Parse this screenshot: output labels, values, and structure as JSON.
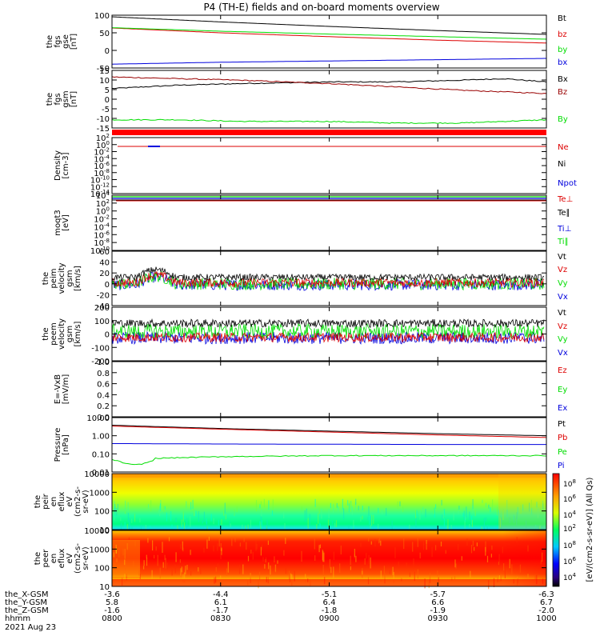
{
  "title": "P4 (TH-E) fields and on-board moments overview",
  "footer": {
    "rows": [
      {
        "label": "the_X-GSM",
        "values": [
          "-3.6",
          "-4.4",
          "-5.1",
          "-5.7",
          "-6.3"
        ]
      },
      {
        "label": "the_Y-GSM",
        "values": [
          "5.8",
          "6.1",
          "6.4",
          "6.6",
          "6.7"
        ]
      },
      {
        "label": "the_Z-GSM",
        "values": [
          "-1.6",
          "-1.7",
          "-1.8",
          "-1.9",
          "-2.0"
        ]
      },
      {
        "label": "hhmm",
        "values": [
          "0800",
          "0830",
          "0900",
          "0930",
          "1000"
        ]
      }
    ],
    "date": "2021 Aug 23"
  },
  "colorbar_label": "[eV/(cm2-s-sr-eV)] (All Qs)",
  "colors": {
    "black": "#000000",
    "red": "#dd0000",
    "green": "#00dd00",
    "blue": "#0000dd",
    "darkred": "#990000"
  },
  "chart_data": [
    {
      "id": "fgs_gse",
      "type": "line",
      "ylabel": [
        "the",
        "fgs",
        "gse",
        "[nT]"
      ],
      "ytick_labels": [
        "100",
        "50",
        "0",
        "-50"
      ],
      "ylim": [
        -60,
        105
      ],
      "legend": [
        {
          "name": "Bt",
          "color": "#000000"
        },
        {
          "name": "bz",
          "color": "#dd0000"
        },
        {
          "name": "by",
          "color": "#00dd00"
        },
        {
          "name": "bx",
          "color": "#0000dd"
        }
      ],
      "x_hours": [
        8.0,
        8.5,
        9.0,
        9.5,
        10.0
      ],
      "series": [
        {
          "name": "Bt",
          "values": [
            100,
            84,
            70,
            57,
            45
          ],
          "color": "#000000"
        },
        {
          "name": "bz",
          "values": [
            65,
            50,
            38,
            27,
            18
          ],
          "color": "#dd0000"
        },
        {
          "name": "by",
          "values": [
            66,
            55,
            46,
            38,
            30
          ],
          "color": "#00dd00"
        },
        {
          "name": "bx",
          "values": [
            -48,
            -42,
            -38,
            -34,
            -30
          ],
          "color": "#0000dd"
        }
      ]
    },
    {
      "id": "fgs_gsm",
      "type": "line",
      "ylabel": [
        "the",
        "fgs",
        "gsm",
        "[nT]"
      ],
      "ytick_labels": [
        "15",
        "10",
        "5",
        "0",
        "-5",
        "-10",
        "-15"
      ],
      "ylim": [
        -18,
        17
      ],
      "legend": [
        {
          "name": "Bx",
          "color": "#000000"
        },
        {
          "name": "Bz",
          "color": "#990000"
        },
        {
          "name": "By",
          "color": "#00dd00"
        }
      ],
      "x_hours": [
        8.0,
        8.3,
        8.6,
        9.0,
        9.3,
        9.6,
        9.8,
        10.0
      ],
      "series": [
        {
          "name": "Bx",
          "values": [
            6,
            8,
            9,
            10,
            10,
            11,
            12,
            10
          ],
          "color": "#000000"
        },
        {
          "name": "Bz",
          "values": [
            13,
            12,
            11,
            9,
            7,
            5,
            4,
            3
          ],
          "color": "#990000"
        },
        {
          "name": "By",
          "values": [
            -13,
            -13,
            -14,
            -14,
            -15,
            -15,
            -14,
            -13
          ],
          "color": "#00dd00"
        }
      ]
    },
    {
      "id": "density",
      "type": "line",
      "ylabel": [
        "Density",
        "[cm-3]"
      ],
      "ytick_labels": [
        "10^2",
        "10^0",
        "10^-2",
        "10^-4",
        "10^-6",
        "10^-8",
        "10^-10",
        "10^-12",
        "10^-14"
      ],
      "log": true,
      "legend": [
        {
          "name": "Ne",
          "color": "#dd0000"
        },
        {
          "name": "Ni",
          "color": "#000000"
        },
        {
          "name": "Npot",
          "color": "#0000dd"
        }
      ],
      "series": [
        {
          "name": "Ne",
          "value": "~1 cm-3",
          "color": "#dd0000"
        }
      ]
    },
    {
      "id": "temperature",
      "type": "line",
      "ylabel": [
        "moqt3",
        "[eV]"
      ],
      "ytick_labels": [
        "10^4",
        "10^2",
        "10^0",
        "10^-2",
        "10^-4",
        "10^-6",
        "10^-8",
        "10^-10"
      ],
      "log": true,
      "legend": [
        {
          "name": "Te⊥",
          "color": "#dd0000"
        },
        {
          "name": "Te∥",
          "color": "#000000"
        },
        {
          "name": "Ti⊥",
          "color": "#0000dd"
        },
        {
          "name": "Ti∥",
          "color": "#00dd00"
        }
      ]
    },
    {
      "id": "peim_velocity",
      "type": "line",
      "ylabel": [
        "the",
        "peim",
        "velocity",
        "gsm",
        "[km/s]"
      ],
      "ytick_labels": [
        "60",
        "40",
        "20",
        "0",
        "-20",
        "-40"
      ],
      "ylim": [
        -40,
        60
      ],
      "legend": [
        {
          "name": "Vt",
          "color": "#000000"
        },
        {
          "name": "Vz",
          "color": "#dd0000"
        },
        {
          "name": "Vy",
          "color": "#00dd00"
        },
        {
          "name": "Vx",
          "color": "#0000dd"
        }
      ]
    },
    {
      "id": "peem_velocity",
      "type": "line",
      "ylabel": [
        "the",
        "peem",
        "velocity",
        "gsm",
        "[km/s]"
      ],
      "ytick_labels": [
        "200",
        "100",
        "0",
        "-100",
        "-200"
      ],
      "ylim": [
        -200,
        200
      ],
      "legend": [
        {
          "name": "Vt",
          "color": "#000000"
        },
        {
          "name": "Vz",
          "color": "#dd0000"
        },
        {
          "name": "Vy",
          "color": "#00dd00"
        },
        {
          "name": "Vx",
          "color": "#0000dd"
        }
      ]
    },
    {
      "id": "efield",
      "type": "line",
      "ylabel": [
        "E=-VxB",
        "[mV/m]"
      ],
      "ytick_labels": [
        "1.0",
        "0.8",
        "0.6",
        "0.4",
        "0.2",
        "0.0"
      ],
      "ylim": [
        0,
        1
      ],
      "legend": [
        {
          "name": "Ez",
          "color": "#dd0000"
        },
        {
          "name": "Ey",
          "color": "#00dd00"
        },
        {
          "name": "Ex",
          "color": "#0000dd"
        }
      ]
    },
    {
      "id": "pressure",
      "type": "line",
      "ylabel": [
        "Pressure",
        "[nPa]"
      ],
      "ytick_labels": [
        "10.00",
        "1.00",
        "0.10",
        "0.01"
      ],
      "log": true,
      "legend": [
        {
          "name": "Pt",
          "color": "#000000"
        },
        {
          "name": "Pb",
          "color": "#dd0000"
        },
        {
          "name": "Pe",
          "color": "#00dd00"
        },
        {
          "name": "Pi",
          "color": "#0000dd"
        }
      ],
      "series": [
        {
          "name": "Pt",
          "values": [
            3.8,
            2.5,
            1.8,
            1.3,
            1.0
          ],
          "color": "#000000"
        },
        {
          "name": "Pb",
          "values": [
            3.4,
            2.3,
            1.6,
            1.1,
            0.8
          ],
          "color": "#dd0000"
        },
        {
          "name": "Pi",
          "values": [
            0.37,
            0.35,
            0.34,
            0.33,
            0.33
          ],
          "color": "#0000dd"
        },
        {
          "name": "Pe",
          "values": [
            0.05,
            0.07,
            0.08,
            0.08,
            0.08
          ],
          "color": "#00dd00"
        }
      ]
    },
    {
      "id": "peir_eflux",
      "type": "heatmap",
      "ylabel": [
        "the",
        "peir",
        "en",
        "eflux",
        "eV",
        "(cm2-s-",
        "sr-eV)"
      ],
      "ytick_labels": [
        "10000",
        "1000",
        "100",
        "10"
      ],
      "colorbar_ticks": [
        "10^8",
        "10^6",
        "10^4",
        "10^2"
      ]
    },
    {
      "id": "peer_eflux",
      "type": "heatmap",
      "ylabel": [
        "the",
        "peer",
        "en",
        "eflux",
        "eV",
        "(cm2-s-",
        "sr-eV)"
      ],
      "ytick_labels": [
        "10000",
        "1000",
        "100",
        "10"
      ],
      "colorbar_ticks": [
        "10^8",
        "10^6",
        "10^4",
        "10^2"
      ]
    }
  ]
}
